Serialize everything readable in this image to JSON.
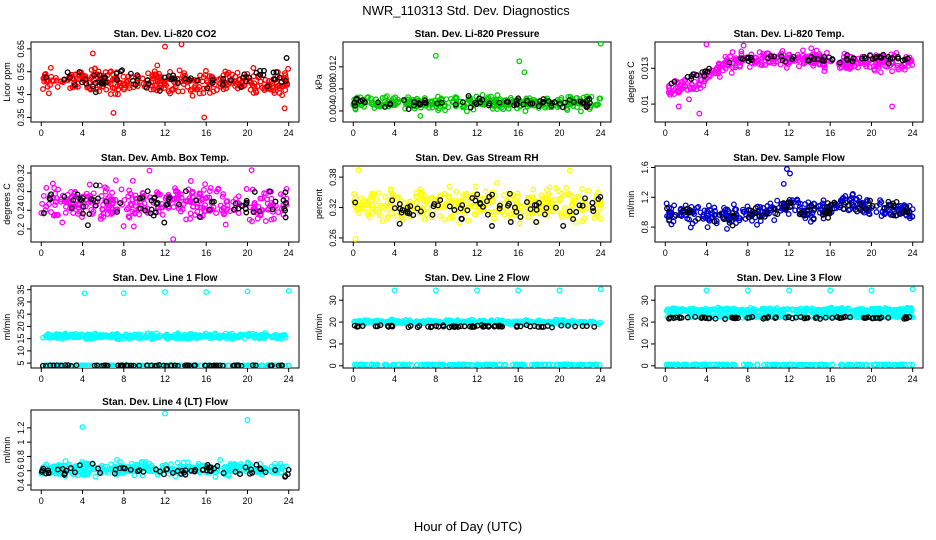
{
  "figure": {
    "title": "NWR_110313  Std. Dev. Diagnostics",
    "xlabel": "Hour of Day (UTC)"
  },
  "chart_data": [
    {
      "type": "scatter",
      "title": "Stan. Dev. Li-820 CO2",
      "ylabel": "Licor ppm",
      "xlim": [
        -1,
        25
      ],
      "ylim": [
        0.33,
        0.68
      ],
      "xticks": [
        0,
        4,
        8,
        12,
        16,
        20,
        24
      ],
      "yticks": [
        0.35,
        0.45,
        0.55,
        0.65
      ],
      "grid": false,
      "series": [
        {
          "color": "#ff0000",
          "band": {
            "center": 0.505,
            "spread": 0.055
          },
          "outliers": [
            {
              "x": 5.0,
              "y": 0.63
            },
            {
              "x": 12.0,
              "y": 0.66
            },
            {
              "x": 13.6,
              "y": 0.67
            },
            {
              "x": 7.0,
              "y": 0.37
            },
            {
              "x": 15.8,
              "y": 0.35
            },
            {
              "x": 23.6,
              "y": 0.39
            }
          ]
        },
        {
          "color": "#000000",
          "band": {
            "center": 0.52,
            "spread": 0.045
          },
          "outliers": [
            {
              "x": 23.8,
              "y": 0.61
            }
          ]
        }
      ]
    },
    {
      "type": "scatter",
      "title": "Stan. Dev. Li-820 Pressure",
      "ylabel": "kPa",
      "xlim": [
        -1,
        25
      ],
      "ylim": [
        0.002,
        0.0165
      ],
      "xticks": [
        0,
        4,
        8,
        12,
        16,
        20,
        24
      ],
      "yticks": [
        0.004,
        0.008,
        0.012
      ],
      "grid": false,
      "series": [
        {
          "color": "#00cc00",
          "band": {
            "center": 0.0055,
            "spread": 0.0012
          },
          "outliers": [
            {
              "x": 8.0,
              "y": 0.014
            },
            {
              "x": 16.1,
              "y": 0.013
            },
            {
              "x": 16.6,
              "y": 0.011
            },
            {
              "x": 24.0,
              "y": 0.0162
            },
            {
              "x": 6.5,
              "y": 0.0031
            }
          ]
        },
        {
          "color": "#000000",
          "band": {
            "center": 0.0055,
            "spread": 0.0009
          },
          "outliers": []
        }
      ]
    },
    {
      "type": "scatter",
      "title": "Stan. Dev. Li-820 Temp.",
      "ylabel": "degrees C",
      "xlim": [
        -1,
        25
      ],
      "ylim": [
        0.0085,
        0.0152
      ],
      "xticks": [
        0,
        4,
        8,
        12,
        16,
        20,
        24
      ],
      "yticks": [
        0.01,
        0.013
      ],
      "grid": false,
      "series": [
        {
          "color": "#ff00ff",
          "trend": [
            [
              0,
              0.0112
            ],
            [
              3,
              0.0118
            ],
            [
              6,
              0.0135
            ],
            [
              10,
              0.0138
            ],
            [
              14,
              0.0137
            ],
            [
              18,
              0.0134
            ],
            [
              24,
              0.0135
            ]
          ],
          "spread": 0.0007,
          "outliers": [
            {
              "x": 1.3,
              "y": 0.0098
            },
            {
              "x": 3.3,
              "y": 0.0092
            },
            {
              "x": 2.3,
              "y": 0.0104
            },
            {
              "x": 22.0,
              "y": 0.0098
            },
            {
              "x": 4.0,
              "y": 0.015
            },
            {
              "x": 7.6,
              "y": 0.0149
            }
          ]
        },
        {
          "color": "#000000",
          "trend": [
            [
              0,
              0.0118
            ],
            [
              3,
              0.0124
            ],
            [
              6,
              0.0136
            ],
            [
              10,
              0.0139
            ],
            [
              14,
              0.0137
            ],
            [
              18,
              0.0139
            ],
            [
              24,
              0.0138
            ]
          ],
          "spread": 0.0003,
          "outliers": []
        }
      ]
    },
    {
      "type": "scatter",
      "title": "Stan. Dev. Amb. Box Temp.",
      "ylabel": "degrees C",
      "xlim": [
        -1,
        25
      ],
      "ylim": [
        0.172,
        0.335
      ],
      "xticks": [
        0,
        4,
        8,
        12,
        16,
        20,
        24
      ],
      "yticks": [
        0.2,
        0.24,
        0.28,
        0.32
      ],
      "grid": false,
      "series": [
        {
          "color": "#ff00ff",
          "band": {
            "center": 0.255,
            "spread": 0.035
          },
          "outliers": [
            {
              "x": 12.8,
              "y": 0.178
            },
            {
              "x": 10.5,
              "y": 0.325
            },
            {
              "x": 20.4,
              "y": 0.326
            }
          ]
        },
        {
          "color": "#000000",
          "band": {
            "center": 0.252,
            "spread": 0.03
          },
          "outliers": []
        }
      ]
    },
    {
      "type": "scatter",
      "title": "Stan. Dev. Gas Stream RH",
      "ylabel": "percent",
      "xlim": [
        -1,
        25
      ],
      "ylim": [
        0.252,
        0.402
      ],
      "xticks": [
        0,
        4,
        8,
        12,
        16,
        20,
        24
      ],
      "yticks": [
        0.26,
        0.32,
        0.38
      ],
      "grid": false,
      "series": [
        {
          "color": "#ffff00",
          "band": {
            "center": 0.325,
            "spread": 0.032
          },
          "outliers": [
            {
              "x": 0.2,
              "y": 0.258
            },
            {
              "x": 21.0,
              "y": 0.393
            },
            {
              "x": 0.5,
              "y": 0.394
            }
          ]
        },
        {
          "color": "#000000",
          "band": {
            "center": 0.322,
            "spread": 0.03
          },
          "outliers": []
        }
      ]
    },
    {
      "type": "scatter",
      "title": "Stan. Dev. Sample Flow",
      "ylabel": "ml/min",
      "xlim": [
        -1,
        25
      ],
      "ylim": [
        0.6,
        1.62
      ],
      "xticks": [
        0,
        4,
        8,
        12,
        16,
        20,
        24
      ],
      "yticks": [
        0.8,
        1.2,
        1.6
      ],
      "grid": false,
      "series": [
        {
          "color": "#0000cc",
          "trend": [
            [
              0,
              0.98
            ],
            [
              6,
              0.95
            ],
            [
              10,
              1.0
            ],
            [
              12,
              1.1
            ],
            [
              14,
              1.0
            ],
            [
              18,
              1.15
            ],
            [
              20,
              1.05
            ],
            [
              24,
              1.0
            ]
          ],
          "spread": 0.12,
          "outliers": [
            {
              "x": 11.8,
              "y": 1.58
            },
            {
              "x": 12.1,
              "y": 1.52
            },
            {
              "x": 11.5,
              "y": 1.38
            }
          ]
        },
        {
          "color": "#000000",
          "trend": [
            [
              0,
              0.98
            ],
            [
              6,
              0.95
            ],
            [
              10,
              1.0
            ],
            [
              12,
              1.1
            ],
            [
              14,
              1.0
            ],
            [
              18,
              1.1
            ],
            [
              24,
              1.02
            ]
          ],
          "spread": 0.1,
          "outliers": []
        }
      ]
    },
    {
      "type": "scatter",
      "title": "Stan. Dev. Line 1 Flow",
      "ylabel": "ml/min",
      "xlim": [
        -1,
        25
      ],
      "ylim": [
        3.0,
        36.5
      ],
      "xticks": [
        0,
        4,
        8,
        12,
        16,
        20,
        24
      ],
      "yticks": [
        5,
        10,
        15,
        20,
        25,
        30,
        35
      ],
      "grid": false,
      "series": [
        {
          "color": "#00ffff",
          "band": {
            "center": 16.0,
            "spread": 1.0
          },
          "extra_bands": [
            {
              "center": 4.0,
              "spread": 0.15
            }
          ],
          "outliers": [
            {
              "x": 4.2,
              "y": 33.5
            },
            {
              "x": 8.0,
              "y": 33.5
            },
            {
              "x": 12.0,
              "y": 34.0
            },
            {
              "x": 16.0,
              "y": 34.0
            },
            {
              "x": 20.0,
              "y": 34.3
            },
            {
              "x": 24.0,
              "y": 34.5
            }
          ]
        },
        {
          "color": "#000000",
          "band": {
            "center": 4.0,
            "spread": 0.2
          },
          "outliers": []
        }
      ]
    },
    {
      "type": "scatter",
      "title": "Stan. Dev. Line 2 Flow",
      "ylabel": "ml/min",
      "xlim": [
        -1,
        25
      ],
      "ylim": [
        -1.0,
        36.5
      ],
      "xticks": [
        0,
        4,
        8,
        12,
        16,
        20,
        24
      ],
      "yticks": [
        0,
        10,
        20,
        30
      ],
      "grid": false,
      "series": [
        {
          "color": "#00ffff",
          "band": {
            "center": 20.0,
            "spread": 0.9
          },
          "extra_bands": [
            {
              "center": 0.5,
              "spread": 0.15
            }
          ],
          "outliers": [
            {
              "x": 4.0,
              "y": 34.5
            },
            {
              "x": 8.0,
              "y": 34.5
            },
            {
              "x": 12.0,
              "y": 34.5
            },
            {
              "x": 16.0,
              "y": 34.5
            },
            {
              "x": 20.0,
              "y": 34.5
            },
            {
              "x": 24.0,
              "y": 35.0
            }
          ]
        },
        {
          "color": "#000000",
          "band": {
            "center": 18.0,
            "spread": 0.5
          },
          "outliers": []
        }
      ]
    },
    {
      "type": "scatter",
      "title": "Stan. Dev. Line 3 Flow",
      "ylabel": "ml/min",
      "xlim": [
        -1,
        25
      ],
      "ylim": [
        -1.0,
        36.5
      ],
      "xticks": [
        0,
        4,
        8,
        12,
        16,
        20,
        24
      ],
      "yticks": [
        0,
        10,
        20,
        30
      ],
      "grid": false,
      "series": [
        {
          "color": "#00ffff",
          "band": {
            "center": 25.5,
            "spread": 0.9
          },
          "extra_bands": [
            {
              "center": 22.5,
              "spread": 0.4
            },
            {
              "center": 0.5,
              "spread": 0.15
            }
          ],
          "outliers": [
            {
              "x": 4.0,
              "y": 34.5
            },
            {
              "x": 8.0,
              "y": 34.5
            },
            {
              "x": 12.0,
              "y": 34.5
            },
            {
              "x": 16.0,
              "y": 34.5
            },
            {
              "x": 20.0,
              "y": 34.5
            },
            {
              "x": 24.0,
              "y": 35.0
            }
          ]
        },
        {
          "color": "#000000",
          "band": {
            "center": 22.0,
            "spread": 0.5
          },
          "outliers": []
        }
      ]
    },
    {
      "type": "scatter",
      "title": "Stan. Dev. Line 4 (LT) Flow",
      "ylabel": "ml/min",
      "xlim": [
        -1,
        25
      ],
      "ylim": [
        0.33,
        1.45
      ],
      "xticks": [
        0,
        4,
        8,
        12,
        16,
        20,
        24
      ],
      "yticks": [
        0.4,
        0.6,
        0.8,
        1.0,
        1.2
      ],
      "grid": false,
      "series": [
        {
          "color": "#00ffff",
          "band": {
            "center": 0.62,
            "spread": 0.09
          },
          "outliers": [
            {
              "x": 4.0,
              "y": 1.21
            },
            {
              "x": 12.0,
              "y": 1.4
            },
            {
              "x": 20.0,
              "y": 1.31
            }
          ]
        },
        {
          "color": "#000000",
          "band": {
            "center": 0.6,
            "spread": 0.08
          },
          "outliers": []
        }
      ]
    }
  ]
}
